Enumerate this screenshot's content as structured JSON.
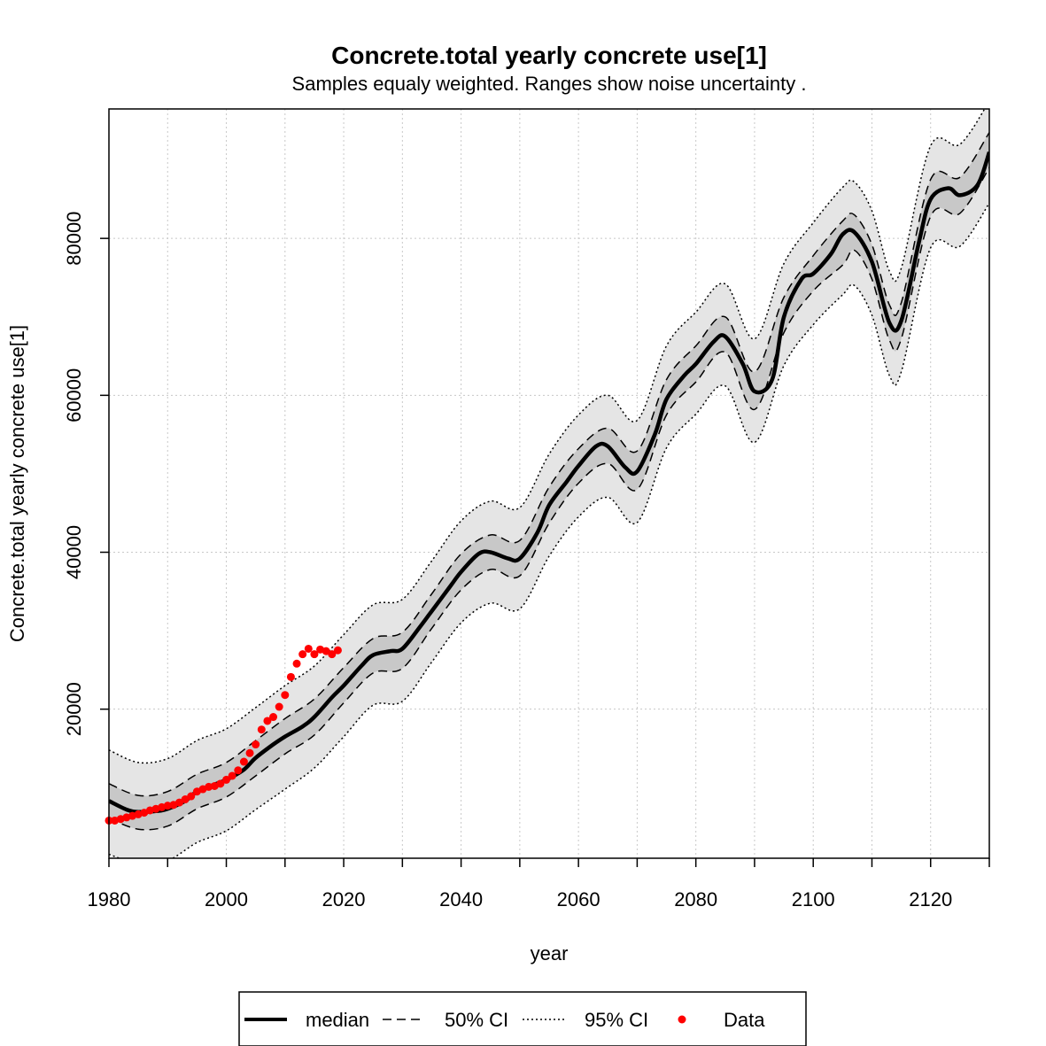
{
  "chart_data": {
    "type": "line",
    "title": "Concrete.total yearly concrete use[1]",
    "subtitle": "Samples equaly weighted. Ranges show  noise uncertainty .",
    "xlabel": "year",
    "ylabel": "Concrete.total yearly concrete use[1]",
    "xlim": [
      1980,
      2130
    ],
    "ylim": [
      1000,
      96500
    ],
    "x_ticks": [
      1980,
      1990,
      2000,
      2010,
      2020,
      2030,
      2040,
      2050,
      2060,
      2070,
      2080,
      2090,
      2100,
      2110,
      2120,
      2130
    ],
    "x_tick_labels": [
      "1980",
      "",
      "2000",
      "",
      "2020",
      "",
      "2040",
      "",
      "2060",
      "",
      "2080",
      "",
      "2100",
      "",
      "2120",
      ""
    ],
    "y_ticks": [
      20000,
      40000,
      60000,
      80000
    ],
    "y_tick_labels": [
      "20000",
      "40000",
      "60000",
      "80000"
    ],
    "grid": true,
    "legend_position": "bottom",
    "legend": [
      {
        "label": "median",
        "style": "solid-thick"
      },
      {
        "label": "50% CI",
        "style": "dashed"
      },
      {
        "label": "95% CI",
        "style": "dotted"
      },
      {
        "label": "Data",
        "style": "point",
        "color": "#ff0000"
      }
    ],
    "colors": {
      "median": "#000000",
      "band50": "#c8c8c8",
      "band95": "#e5e5e5",
      "data": "#ff0000",
      "grid": "#c8c8c8"
    },
    "median": {
      "x": [
        1980,
        1983,
        1985,
        1988,
        1990,
        1993,
        1995,
        1998,
        2000,
        2003,
        2005,
        2008,
        2010,
        2013,
        2015,
        2018,
        2020,
        2023,
        2025,
        2028,
        2030,
        2033,
        2035,
        2038,
        2040,
        2043,
        2045,
        2048,
        2050,
        2053,
        2055,
        2058,
        2060,
        2063,
        2065,
        2068,
        2070,
        2073,
        2075,
        2078,
        2080,
        2083,
        2085,
        2088,
        2090,
        2093,
        2095,
        2098,
        2100,
        2103,
        2105,
        2107,
        2110,
        2113,
        2115,
        2118,
        2120,
        2123,
        2125,
        2128,
        2130
      ],
      "y": [
        8300,
        7200,
        6900,
        7000,
        7300,
        8300,
        9500,
        10400,
        11000,
        12300,
        13800,
        15500,
        16500,
        17800,
        19000,
        21500,
        23000,
        25500,
        26900,
        27400,
        27700,
        30500,
        32500,
        35500,
        37500,
        39800,
        40000,
        39200,
        39200,
        42500,
        46000,
        49000,
        51000,
        53500,
        53500,
        50800,
        50300,
        55000,
        59500,
        62500,
        64000,
        66800,
        67500,
        64000,
        60500,
        62000,
        70000,
        74800,
        75500,
        78000,
        80500,
        80800,
        77000,
        69200,
        69500,
        79500,
        85000,
        86400,
        85500,
        86800,
        91000
      ]
    },
    "ci50_upper": {
      "x": [
        1980,
        1985,
        1990,
        1995,
        2000,
        2005,
        2010,
        2015,
        2020,
        2025,
        2030,
        2035,
        2040,
        2045,
        2050,
        2055,
        2060,
        2065,
        2070,
        2075,
        2080,
        2085,
        2090,
        2095,
        2100,
        2105,
        2107,
        2110,
        2113,
        2115,
        2120,
        2125,
        2130
      ],
      "y": [
        10500,
        9000,
        9500,
        11700,
        13200,
        16000,
        18800,
        21300,
        25300,
        29000,
        29800,
        34700,
        39800,
        42200,
        41500,
        48300,
        53200,
        55800,
        52900,
        62000,
        66300,
        70000,
        63000,
        72500,
        77800,
        82200,
        83000,
        79200,
        71500,
        71800,
        87500,
        87800,
        93500
      ]
    },
    "ci50_lower": {
      "x": [
        1980,
        1985,
        1990,
        1995,
        2000,
        2005,
        2010,
        2015,
        2020,
        2025,
        2030,
        2035,
        2040,
        2045,
        2050,
        2055,
        2060,
        2065,
        2070,
        2075,
        2080,
        2085,
        2090,
        2095,
        2100,
        2105,
        2107,
        2110,
        2113,
        2115,
        2120,
        2125,
        2130
      ],
      "y": [
        6100,
        4700,
        5100,
        7300,
        8800,
        11500,
        14300,
        16700,
        20800,
        24600,
        25200,
        30300,
        35200,
        37800,
        37000,
        43700,
        48800,
        51300,
        48000,
        57500,
        61700,
        65500,
        58200,
        68000,
        73300,
        76600,
        78500,
        74800,
        67000,
        67200,
        82800,
        83200,
        89000
      ]
    },
    "ci95_upper": {
      "x": [
        1980,
        1985,
        1990,
        1995,
        2000,
        2005,
        2010,
        2015,
        2020,
        2025,
        2030,
        2035,
        2040,
        2045,
        2050,
        2055,
        2060,
        2065,
        2070,
        2075,
        2080,
        2085,
        2090,
        2095,
        2100,
        2105,
        2107,
        2110,
        2113,
        2115,
        2120,
        2125,
        2130
      ],
      "y": [
        14800,
        13200,
        13700,
        16000,
        17500,
        20200,
        23000,
        25500,
        29500,
        33300,
        34000,
        38900,
        44000,
        46500,
        45700,
        52500,
        57500,
        60000,
        56800,
        66300,
        70600,
        74200,
        67200,
        76800,
        82000,
        86500,
        87200,
        83500,
        75800,
        76200,
        91800,
        92000,
        97500
      ]
    },
    "ci95_lower": {
      "x": [
        1980,
        1985,
        1990,
        1995,
        2000,
        2005,
        2010,
        2015,
        2020,
        2025,
        2030,
        2035,
        2040,
        2045,
        2050,
        2055,
        2060,
        2065,
        2070,
        2075,
        2080,
        2085,
        2090,
        2095,
        2100,
        2105,
        2107,
        2110,
        2113,
        2115,
        2120,
        2125,
        2130
      ],
      "y": [
        1500,
        300,
        700,
        3000,
        4500,
        7200,
        9800,
        12500,
        16500,
        20500,
        21000,
        26000,
        31000,
        33500,
        32800,
        39500,
        44500,
        47000,
        43800,
        53300,
        57600,
        61200,
        54000,
        63800,
        69000,
        72800,
        74000,
        70200,
        62500,
        63000,
        78800,
        79000,
        84500
      ]
    },
    "data_points": {
      "x": [
        1980,
        1981,
        1982,
        1983,
        1984,
        1985,
        1986,
        1987,
        1988,
        1989,
        1990,
        1991,
        1992,
        1993,
        1994,
        1995,
        1996,
        1997,
        1998,
        1999,
        2000,
        2001,
        2002,
        2003,
        2004,
        2005,
        2006,
        2007,
        2008,
        2009,
        2010,
        2011,
        2012,
        2013,
        2014,
        2015,
        2016,
        2017,
        2018,
        2019
      ],
      "y": [
        5800,
        5800,
        6000,
        6200,
        6400,
        6600,
        6800,
        7100,
        7300,
        7500,
        7700,
        7800,
        8100,
        8500,
        8900,
        9500,
        9800,
        10100,
        10200,
        10500,
        11000,
        11500,
        12200,
        13300,
        14400,
        15500,
        17400,
        18500,
        19000,
        20300,
        21800,
        24100,
        25800,
        27000,
        27700,
        27000,
        27600,
        27400,
        27000,
        27500
      ]
    }
  }
}
